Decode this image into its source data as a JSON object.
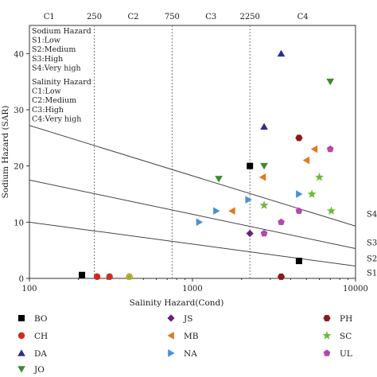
{
  "chart_data": {
    "type": "scatter",
    "title": "",
    "xlabel": "Salinity Hazard(Cond)",
    "ylabel": "Sodium Hazard (SAR)",
    "xscale": "log",
    "xlim": [
      100,
      10000
    ],
    "ylim": [
      0,
      45
    ],
    "x_ticks": [
      100,
      1000,
      10000
    ],
    "x_tick_labels": [
      "100",
      "1000",
      "10000"
    ],
    "y_ticks": [
      0,
      10,
      20,
      30,
      40
    ],
    "y_tick_labels": [
      "0",
      "10",
      "20",
      "30",
      "40"
    ],
    "grid": false,
    "salinity_class_boundaries": [
      250,
      750,
      2250
    ],
    "salinity_class_labels": [
      "C1",
      "C2",
      "C3",
      "C4"
    ],
    "boundary_labels": [
      "250",
      "750",
      "2250"
    ],
    "sodium_lines": [
      {
        "label": "S4",
        "p1": [
          100,
          27.2
        ],
        "p2": [
          10000,
          9.3
        ]
      },
      {
        "label": "S3",
        "p1": [
          100,
          17.5
        ],
        "p2": [
          10000,
          5.3
        ]
      },
      {
        "label": "S2",
        "p1": [
          100,
          10.0
        ],
        "p2": [
          10000,
          2.2
        ]
      }
    ],
    "sodium_labels_right": [
      "S4",
      "S3",
      "S2",
      "S1"
    ],
    "legend_box": {
      "sodium_title": "Sodium Hazard",
      "sodium_items": [
        "S1:Low",
        "S2:Medium",
        "S3:High",
        "S4:Very high"
      ],
      "salinity_title": "Salinity Hazard",
      "salinity_items": [
        "C1:Low",
        "C2:Medium",
        "C3:High",
        "C4:Very high"
      ]
    },
    "legend_position": "bottom",
    "series": [
      {
        "name": "BO",
        "marker": "square",
        "color": "#000000",
        "points": [
          [
            210,
            0.6
          ],
          [
            2250,
            20
          ],
          [
            4500,
            3.1
          ]
        ]
      },
      {
        "name": "CH",
        "marker": "circle",
        "color": "#d42a1e",
        "points": [
          [
            260,
            0.3
          ],
          [
            310,
            0.3
          ]
        ]
      },
      {
        "name": "DA",
        "marker": "triangle-up",
        "color": "#2e2e8f",
        "points": [
          [
            2750,
            27
          ],
          [
            3500,
            40
          ]
        ]
      },
      {
        "name": "JO",
        "marker": "triangle-down",
        "color": "#3f8a2e",
        "points": [
          [
            1450,
            17.7
          ],
          [
            2750,
            20
          ],
          [
            7000,
            35
          ]
        ]
      },
      {
        "name": "JS",
        "marker": "diamond",
        "color": "#6b1f7a",
        "points": [
          [
            2250,
            8
          ]
        ]
      },
      {
        "name": "MB",
        "marker": "triangle-left",
        "color": "#e07a20",
        "points": [
          [
            1750,
            12
          ],
          [
            2700,
            18
          ],
          [
            5000,
            21
          ],
          [
            5600,
            23
          ]
        ]
      },
      {
        "name": "NA",
        "marker": "triangle-right",
        "color": "#4a90d9",
        "points": [
          [
            1100,
            10
          ],
          [
            1400,
            12
          ],
          [
            2200,
            14
          ],
          [
            4500,
            15
          ]
        ]
      },
      {
        "name": "PH",
        "marker": "hexagon",
        "color": "#8b1a1a",
        "points": [
          [
            3500,
            0.3
          ],
          [
            4500,
            25
          ]
        ]
      },
      {
        "name": "SC",
        "marker": "star",
        "color": "#6fb83a",
        "points": [
          [
            2750,
            13
          ],
          [
            5400,
            15
          ],
          [
            6000,
            18
          ],
          [
            7100,
            12
          ]
        ]
      },
      {
        "name": "UL",
        "marker": "pentagon",
        "color": "#b04aab",
        "points": [
          [
            2750,
            8
          ],
          [
            3500,
            10
          ],
          [
            4500,
            12
          ],
          [
            7000,
            23
          ]
        ]
      },
      {
        "name": "mixed-low",
        "legend": false,
        "marker": "mixed",
        "color": "#d4c22a",
        "points": [
          [
            410,
            0.3
          ]
        ]
      }
    ]
  }
}
